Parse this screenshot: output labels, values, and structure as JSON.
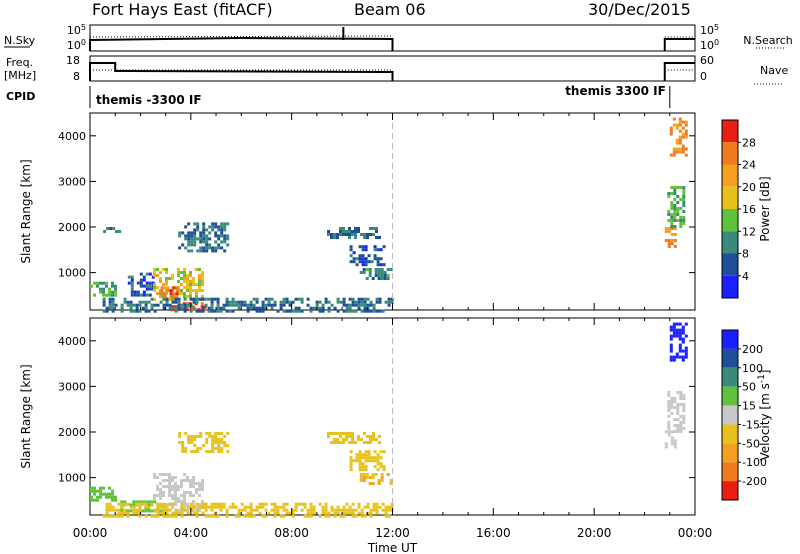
{
  "header": {
    "station": "Fort Hays East (fitACF)",
    "beam": "Beam 06",
    "date": "30/Dec/2015"
  },
  "top_panels": {
    "nsky_label": "N.Sky",
    "nsky_ticks": [
      "10^5",
      "10^0"
    ],
    "nsearch_label": "N.Search",
    "nsearch_ticks": [
      "10^5",
      "10^0"
    ],
    "freq_label": "Freq.",
    "freq_unit": "[MHz]",
    "freq_ticks": [
      "18",
      "8"
    ],
    "nave_label": "Nave",
    "nave_ticks": [
      "60",
      "0"
    ],
    "cpid_label": "CPID",
    "cpid_segments": [
      "themis -3300 IF",
      "themis 3300 IF"
    ]
  },
  "chart_data": [
    {
      "type": "heatmap",
      "panel": "power",
      "ylabel": "Slant Range [km]",
      "yticks": [
        "1000",
        "2000",
        "3000",
        "4000"
      ],
      "ylim": [
        180,
        4500
      ],
      "xlim_hours": [
        0,
        24
      ],
      "colorbar_label": "Power [dB]",
      "colorbar_ticks": [
        "4",
        "8",
        "12",
        "16",
        "20",
        "24",
        "28"
      ],
      "colorbar_colors": [
        "#1a20ff",
        "#1f4f99",
        "#3a8a7a",
        "#5fc23a",
        "#e8c21a",
        "#f5a020",
        "#f27b1f",
        "#ea1e12"
      ],
      "colorbar_range": [
        0,
        32
      ],
      "echo_regions": [
        {
          "t0": 0.0,
          "t1": 1.0,
          "r0": 500,
          "r1": 800,
          "value": 12
        },
        {
          "t0": 0.4,
          "t1": 1.2,
          "r0": 1900,
          "r1": 2000,
          "value": 8
        },
        {
          "t0": 1.5,
          "t1": 2.5,
          "r0": 500,
          "r1": 1000,
          "value": 6
        },
        {
          "t0": 2.5,
          "t1": 4.5,
          "r0": 400,
          "r1": 1100,
          "value": 18
        },
        {
          "t0": 2.8,
          "t1": 3.6,
          "r0": 500,
          "r1": 700,
          "value": 26
        },
        {
          "t0": 3.2,
          "t1": 4.6,
          "r0": 180,
          "r1": 350,
          "value": 28
        },
        {
          "t0": 3.5,
          "t1": 5.5,
          "r0": 1500,
          "r1": 2100,
          "value": 8
        },
        {
          "t0": 0.5,
          "t1": 12.0,
          "r0": 180,
          "r1": 450,
          "value": 8
        },
        {
          "t0": 9.4,
          "t1": 11.5,
          "r0": 1800,
          "r1": 2000,
          "value": 8
        },
        {
          "t0": 10.3,
          "t1": 11.7,
          "r0": 1200,
          "r1": 1600,
          "value": 6
        },
        {
          "t0": 10.7,
          "t1": 12.0,
          "r0": 900,
          "r1": 1100,
          "value": 9
        },
        {
          "t0": 22.8,
          "t1": 23.2,
          "r0": 1600,
          "r1": 2000,
          "value": 24
        },
        {
          "t0": 22.9,
          "t1": 23.5,
          "r0": 2000,
          "r1": 2900,
          "value": 12
        },
        {
          "t0": 23.0,
          "t1": 23.6,
          "r0": 3600,
          "r1": 4400,
          "value": 24
        }
      ]
    },
    {
      "type": "heatmap",
      "panel": "velocity",
      "ylabel": "Slant Range [km]",
      "xlabel": "Time UT",
      "yticks": [
        "1000",
        "2000",
        "3000",
        "4000"
      ],
      "ylim": [
        180,
        4500
      ],
      "xlim_hours": [
        0,
        24
      ],
      "xticks": [
        "00:00",
        "04:00",
        "08:00",
        "12:00",
        "16:00",
        "20:00",
        "00:00"
      ],
      "colorbar_label": "Velocity [m s^-1]",
      "colorbar_ticks": [
        "200",
        "100",
        "50",
        "15",
        "-15",
        "-50",
        "-100",
        "-200"
      ],
      "colorbar_colors": [
        "#1a20ff",
        "#1f4f99",
        "#3a8a7a",
        "#5fc23a",
        "#c8c8c8",
        "#e8c21a",
        "#f5a020",
        "#f27b1f",
        "#ea1e12"
      ],
      "echo_regions": [
        {
          "t0": 0.0,
          "t1": 1.0,
          "r0": 500,
          "r1": 800,
          "value": 40
        },
        {
          "t0": 2.5,
          "t1": 4.5,
          "r0": 300,
          "r1": 1100,
          "value": 0
        },
        {
          "t0": 1.2,
          "t1": 3.0,
          "r0": 300,
          "r1": 500,
          "value": 40
        },
        {
          "t0": 3.5,
          "t1": 5.5,
          "r0": 1600,
          "r1": 2000,
          "value": -40
        },
        {
          "t0": 0.5,
          "t1": 12.0,
          "r0": 180,
          "r1": 450,
          "value": -40
        },
        {
          "t0": 9.4,
          "t1": 11.5,
          "r0": 1800,
          "r1": 2000,
          "value": -30
        },
        {
          "t0": 10.3,
          "t1": 11.7,
          "r0": 1200,
          "r1": 1600,
          "value": -40
        },
        {
          "t0": 10.7,
          "t1": 12.0,
          "r0": 900,
          "r1": 1100,
          "value": -50
        },
        {
          "t0": 22.8,
          "t1": 23.2,
          "r0": 1700,
          "r1": 2100,
          "value": 0
        },
        {
          "t0": 22.9,
          "t1": 23.5,
          "r0": 2000,
          "r1": 2900,
          "value": 0
        },
        {
          "t0": 23.0,
          "t1": 23.6,
          "r0": 3600,
          "r1": 4400,
          "value": 250
        }
      ]
    }
  ]
}
